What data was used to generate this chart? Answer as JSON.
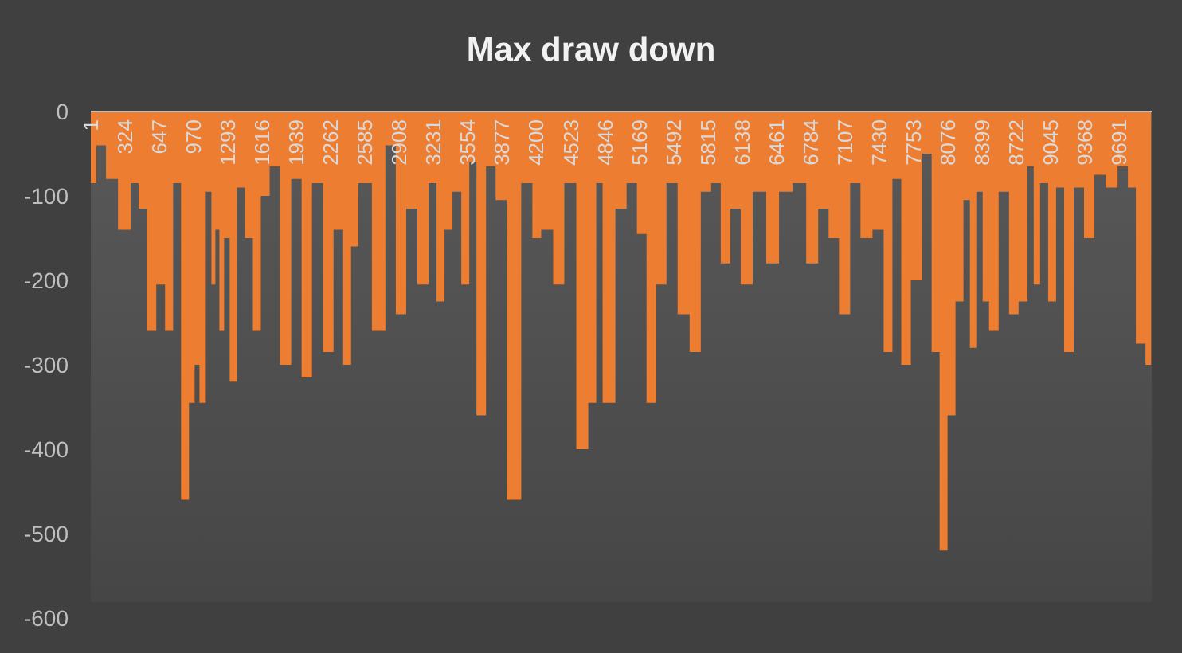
{
  "chart_data": {
    "type": "area",
    "title": "Max draw down",
    "color": "#ed7d31",
    "x": [
      1,
      106,
      182,
      332,
      422,
      483,
      573,
      663,
      739,
      814,
      889,
      964,
      995,
      1055,
      1115,
      1160,
      1190,
      1235,
      1280,
      1340,
      1416,
      1491,
      1566,
      1641,
      1732,
      1837,
      1942,
      2033,
      2138,
      2243,
      2334,
      2424,
      2484,
      2560,
      2740,
      2815,
      2936,
      3011,
      3146,
      3222,
      3297,
      3372,
      3447,
      3538,
      3598,
      3673,
      3779,
      3854,
      3990,
      4125,
      4200,
      4291,
      4426,
      4501,
      4652,
      4727,
      4802,
      4847,
      4892,
      4998,
      5103,
      5193,
      5284,
      5374,
      5479,
      5584,
      5705,
      5795,
      5900,
      5976,
      6081,
      6171,
      6307,
      6427,
      6548,
      6683,
      6804,
      6909,
      7000,
      7105,
      7210,
      7300,
      7436,
      7511,
      7601,
      7677,
      7782,
      7888,
      7963,
      8038,
      8113,
      8188,
      8263,
      8309,
      8384,
      8429,
      8504,
      8610,
      8700,
      8790,
      8865,
      8910,
      8986,
      9061,
      9136,
      9212,
      9317,
      9407,
      9512,
      9618,
      9738,
      9813,
      9888,
      9994
    ],
    "values": [
      -85,
      -40,
      -80,
      -140,
      -85,
      -115,
      -260,
      -205,
      -260,
      -85,
      -460,
      -345,
      -300,
      -345,
      -95,
      -205,
      -140,
      -260,
      -150,
      -320,
      -90,
      -150,
      -260,
      -100,
      -65,
      -300,
      -80,
      -315,
      -85,
      -285,
      -140,
      -300,
      -160,
      -85,
      -260,
      -40,
      -240,
      -115,
      -205,
      -85,
      -225,
      -140,
      -95,
      -205,
      -60,
      -360,
      -65,
      -105,
      -460,
      -85,
      -150,
      -140,
      -205,
      -85,
      -400,
      -345,
      -85,
      -345,
      -345,
      -115,
      -85,
      -145,
      -345,
      -205,
      -85,
      -240,
      -285,
      -95,
      -85,
      -180,
      -115,
      -205,
      -95,
      -180,
      -95,
      -85,
      -180,
      -115,
      -150,
      -240,
      -85,
      -150,
      -140,
      -285,
      -80,
      -300,
      -200,
      -50,
      -285,
      -520,
      -360,
      -225,
      -105,
      -280,
      -95,
      -225,
      -260,
      -95,
      -240,
      -225,
      -65,
      -205,
      -85,
      -225,
      -90,
      -285,
      -90,
      -150,
      -75,
      -90,
      -65,
      -90,
      -275,
      -300
    ],
    "xlim": [
      1,
      10000
    ],
    "xticks": [
      1,
      324,
      647,
      970,
      1293,
      1616,
      1939,
      2262,
      2585,
      2908,
      3231,
      3554,
      3877,
      4200,
      4523,
      4846,
      5169,
      5492,
      5815,
      6138,
      6461,
      6784,
      7107,
      7430,
      7753,
      8076,
      8399,
      8722,
      9045,
      9368,
      9691
    ],
    "ylim": [
      -600,
      0
    ],
    "yticks": [
      0,
      -100,
      -200,
      -300,
      -400,
      -500,
      -600
    ]
  }
}
